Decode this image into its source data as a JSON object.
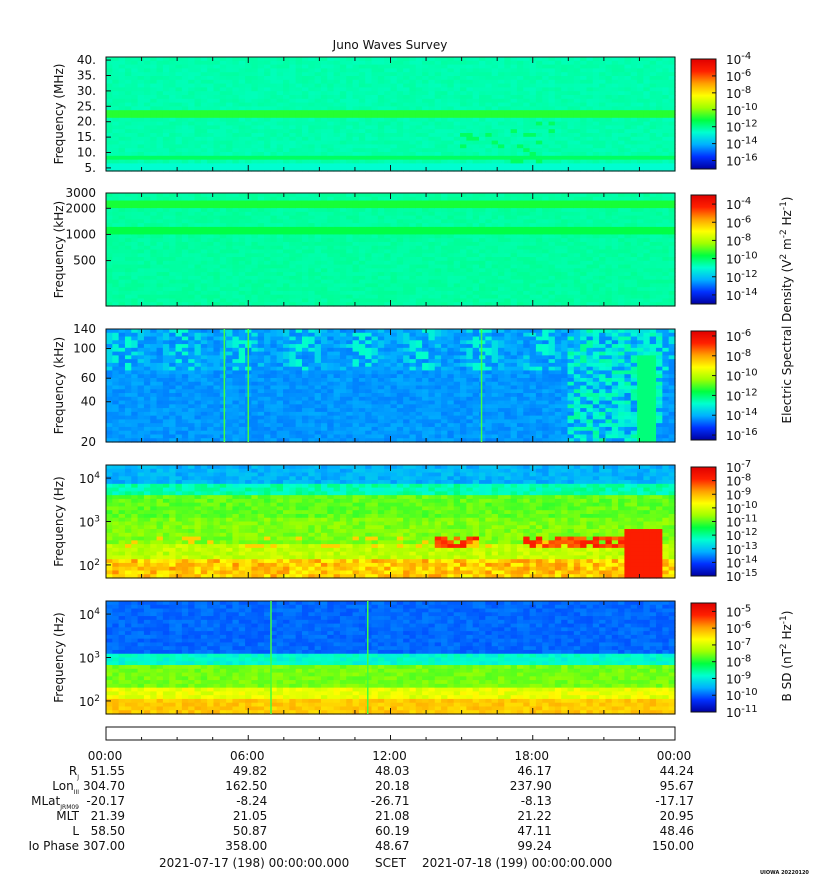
{
  "chart_data": {
    "type": "heatmap",
    "title": "Juno Waves Survey",
    "panels": [
      {
        "ylabel": "Frequency (MHz)",
        "yscale": "linear",
        "ylim": [
          4,
          41
        ],
        "yticks": [
          "5.",
          "10.",
          "15.",
          "20.",
          "25.",
          "30.",
          "35.",
          "40."
        ],
        "colorbar": {
          "ticks": [
            "-4",
            "-6",
            "-8",
            "-10",
            "-12",
            "-14",
            "-16"
          ],
          "base": "10",
          "range": [
            -17,
            -4
          ]
        }
      },
      {
        "ylabel": "Frequency (kHz)",
        "yscale": "log",
        "ylim": [
          150,
          3000
        ],
        "yticks": [
          "3000",
          "2000",
          "1000",
          "500"
        ],
        "colorbar": {
          "ticks": [
            "-4",
            "-6",
            "-8",
            "-10",
            "-12",
            "-14"
          ],
          "base": "10",
          "range": [
            -15,
            -3
          ]
        }
      },
      {
        "ylabel": "Frequency (kHz)",
        "yscale": "log",
        "ylim": [
          20,
          140
        ],
        "yticks": [
          "140",
          "100",
          "60",
          "40",
          "20"
        ],
        "colorbar": {
          "ticks": [
            "-6",
            "-8",
            "-10",
            "-12",
            "-14",
            "-16"
          ],
          "base": "10",
          "range": [
            -16.5,
            -5.5
          ]
        }
      },
      {
        "ylabel": "Frequency (Hz)",
        "yscale": "log",
        "ylim": [
          50,
          20000
        ],
        "yticks": [
          {
            "base": "10",
            "exp": "4"
          },
          {
            "base": "10",
            "exp": "3"
          },
          {
            "base": "10",
            "exp": "2"
          }
        ],
        "colorbar": {
          "ticks": [
            "-7",
            "-8",
            "-9",
            "-10",
            "-11",
            "-12",
            "-13",
            "-14",
            "-15"
          ],
          "base": "10",
          "range": [
            -15,
            -7
          ]
        }
      },
      {
        "ylabel": "Frequency (Hz)",
        "yscale": "log",
        "ylim": [
          50,
          20000
        ],
        "yticks": [
          {
            "base": "10",
            "exp": "4"
          },
          {
            "base": "10",
            "exp": "3"
          },
          {
            "base": "10",
            "exp": "2"
          }
        ],
        "colorbar": {
          "ticks": [
            "-5",
            "-6",
            "-7",
            "-8",
            "-9",
            "-10",
            "-11"
          ],
          "base": "10",
          "range": [
            -11,
            -4.5
          ]
        }
      }
    ],
    "colorbar_titles": {
      "electric": {
        "main": "Electric Spectral Density (V",
        "sup1": "2",
        "mid": " m",
        "sup2": "-2",
        "mid2": " Hz",
        "sup3": "-1",
        "end": ")"
      },
      "magnetic": {
        "main": "B SD (nT",
        "sup1": "2",
        "mid": " Hz",
        "sup2": "-1",
        "end": ")"
      }
    },
    "xticks": [
      "00:00",
      "06:00",
      "12:00",
      "18:00",
      "00:00"
    ],
    "ephemeris": [
      {
        "label": "R",
        "sub": "J",
        "values": [
          "51.55",
          "49.82",
          "48.03",
          "46.17",
          "44.24"
        ]
      },
      {
        "label": "Lon",
        "sub": "III",
        "values": [
          "304.70",
          "162.50",
          "20.18",
          "237.90",
          "95.67"
        ]
      },
      {
        "label": "MLat",
        "sub": "JRM09",
        "values": [
          "-20.17",
          "-8.24",
          "-26.71",
          "-8.13",
          "-17.17"
        ]
      },
      {
        "label": "MLT",
        "sub": "",
        "values": [
          "21.39",
          "21.05",
          "21.08",
          "21.22",
          "20.95"
        ]
      },
      {
        "label": "L",
        "sub": "",
        "values": [
          "58.50",
          "50.87",
          "60.19",
          "47.11",
          "48.46"
        ]
      },
      {
        "label": "Io Phase",
        "sub": "",
        "values": [
          "307.00",
          "358.00",
          "48.67",
          "99.24",
          "150.00"
        ]
      }
    ],
    "time_range": {
      "start": "2021-07-17 (198) 00:00:00.000",
      "label": "SCET",
      "end": "2021-07-18 (199) 00:00:00.000"
    },
    "version_tag": "UIOWA 20220120",
    "colormap": [
      "#0000a0",
      "#0030ff",
      "#00b0ff",
      "#00ffd0",
      "#00ff40",
      "#a0ff00",
      "#ffff00",
      "#ffa000",
      "#ff2000",
      "#e00000"
    ]
  }
}
